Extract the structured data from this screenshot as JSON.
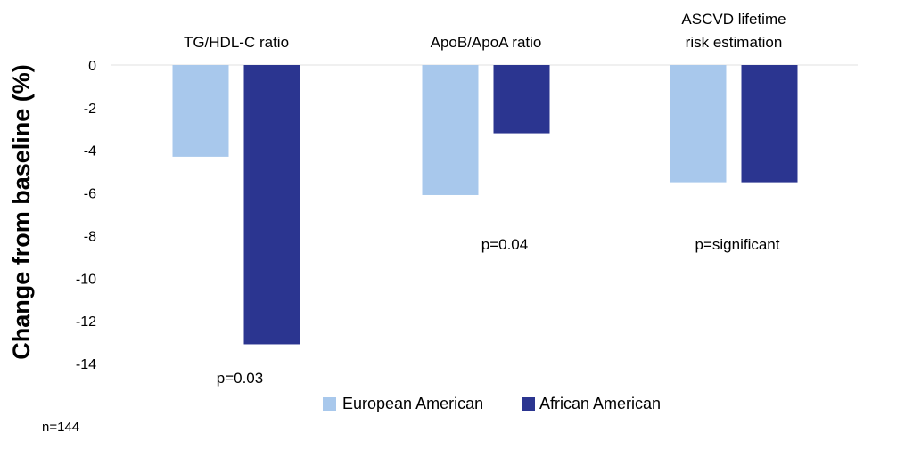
{
  "chart_data": {
    "type": "bar",
    "ylabel": "Change from baseline (%)",
    "ylim": [
      -14,
      0
    ],
    "yticks": [
      0,
      -2,
      -4,
      -6,
      -8,
      -10,
      -12,
      -14
    ],
    "grid": false,
    "legend_position": "bottom",
    "categories": [
      [
        "TG/HDL-C ratio"
      ],
      [
        "ApoB/ApoA ratio"
      ],
      [
        "ASCVD lifetime",
        "risk estimation"
      ]
    ],
    "series": [
      {
        "name": "European American",
        "color": "#A8C8EC",
        "values": [
          -4.3,
          -6.1,
          -5.5
        ]
      },
      {
        "name": "African American",
        "color": "#2B3590",
        "values": [
          -13.1,
          -3.2,
          -5.5
        ]
      }
    ],
    "annotations": [
      "p=0.03",
      "p=0.04",
      "p=significant"
    ],
    "footnote": "n=144"
  }
}
